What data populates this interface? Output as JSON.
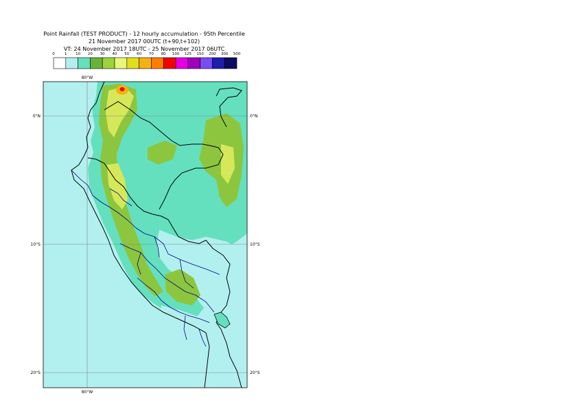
{
  "title": {
    "line1": "Point Rainfall (TEST PRODUCT) - 12 hourly accumulation - 95th Percentile",
    "line2": "21 November 2017 00UTC (t+90,t+102)",
    "line3": "VT: 24 November 2017 18UTC - 25 November 2017 06UTC"
  },
  "legend": {
    "ticks": [
      "0",
      "1",
      "10",
      "20",
      "30",
      "40",
      "50",
      "60",
      "70",
      "80",
      "100",
      "125",
      "150",
      "200",
      "300",
      "500"
    ],
    "colors": [
      "#ffffff",
      "#b2f0ef",
      "#64e0bf",
      "#6ab33a",
      "#9bd33a",
      "#e8f77a",
      "#e2dd1d",
      "#f4b112",
      "#ff7e00",
      "#f70000",
      "#e400e4",
      "#9f00ba",
      "#7a4cf2",
      "#1d1db0",
      "#0c0c62"
    ]
  },
  "map": {
    "colors": {
      "sea": "#b2f0ef",
      "light": "#b2f0ef",
      "mid": "#64e0bf",
      "green": "#8cc63f",
      "yellow": "#d6e85a",
      "orange": "#f4b112",
      "red": "#f70000",
      "coast": "#000000",
      "border": "#000080"
    },
    "lat_labels": {
      "eq_left": "0°N",
      "eq_right": "0°N",
      "s10_left": "10°S",
      "s10_right": "10°S",
      "s20_left": "20°S",
      "s20_right": "20°S"
    },
    "lon_labels": {
      "top": "80°W",
      "bottom": "80°W"
    }
  }
}
